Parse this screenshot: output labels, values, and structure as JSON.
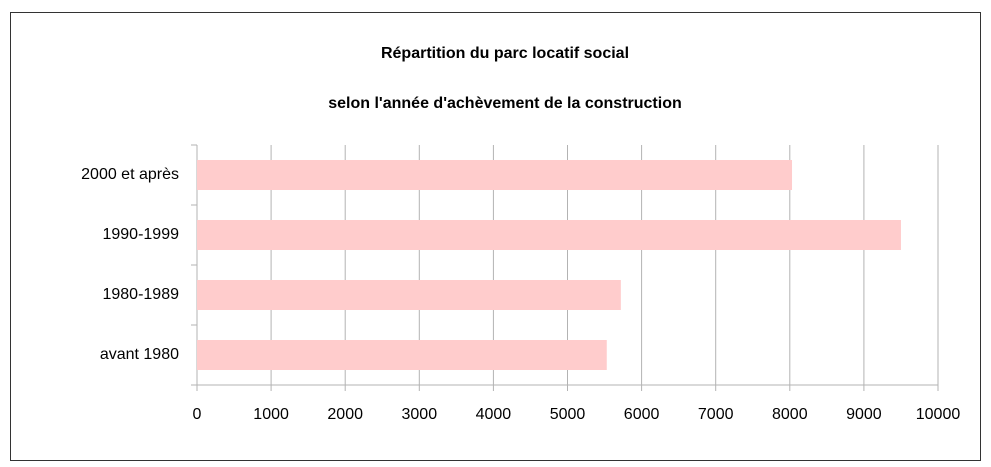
{
  "chart_data": {
    "type": "hbar",
    "title": "Répartition du parc locatif social",
    "subtitle": "selon l'année d'achèvement de la construction",
    "categories": [
      "2000 et après",
      "1990-1999",
      "1980-1989",
      "avant 1980"
    ],
    "values": [
      8030,
      9500,
      5720,
      5530
    ],
    "color": "#ffcccc",
    "xlim": [
      0,
      10000
    ],
    "xticks": [
      0,
      1000,
      2000,
      3000,
      4000,
      5000,
      6000,
      7000,
      8000,
      9000,
      10000
    ],
    "grid": true
  }
}
